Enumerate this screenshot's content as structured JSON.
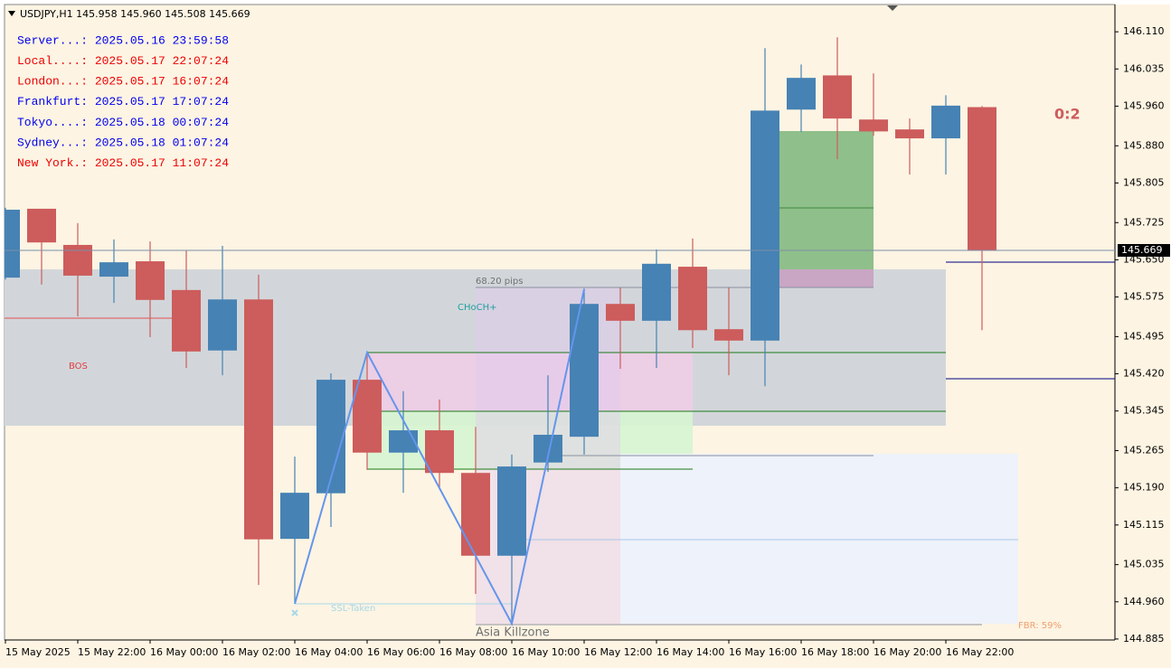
{
  "chart_data": {
    "type": "candlestick",
    "header": "USDJPY,H1  145.958 145.960 145.508 145.669",
    "clocks": [
      {
        "text": "Server...: 2025.05.16 23:59:58",
        "color": "#0000ee"
      },
      {
        "text": "Local....: 2025.05.17 22:07:24",
        "color": "#ee0000"
      },
      {
        "text": "London...: 2025.05.17 16:07:24",
        "color": "#ee0000"
      },
      {
        "text": "Frankfurt: 2025.05.17 17:07:24",
        "color": "#0000ee"
      },
      {
        "text": "Tokyo....: 2025.05.18 00:07:24",
        "color": "#0000ee"
      },
      {
        "text": "Sydney...: 2025.05.18 01:07:24",
        "color": "#0000ee"
      },
      {
        "text": "New York.: 2025.05.17 11:07:24",
        "color": "#ee0000"
      }
    ],
    "annotations": {
      "bos": "BOS",
      "choch": "CHoCH+",
      "pips": "68.20 pips",
      "ssl": "SSL-Taken",
      "killzone": "Asia Killzone",
      "fbr": "FBR: 59%",
      "score": "0:2"
    },
    "categories": [
      "15 May 2025",
      null,
      "15 May 22:00",
      null,
      "16 May 00:00",
      null,
      "16 May 02:00",
      null,
      "16 May 04:00",
      null,
      "16 May 06:00",
      null,
      "16 May 08:00",
      null,
      "16 May 10:00",
      null,
      "16 May 12:00",
      null,
      "16 May 14:00",
      null,
      "16 May 16:00",
      null,
      "16 May 18:00",
      null,
      "16 May 20:00",
      null,
      "16 May 22:00",
      null
    ],
    "open": [
      145.614,
      145.753,
      145.68,
      145.616,
      145.647,
      145.589,
      145.467,
      145.57,
      145.087,
      145.179,
      145.408,
      145.261,
      145.306,
      145.22,
      145.053,
      145.241,
      145.293,
      145.561,
      145.527,
      145.636,
      145.51,
      145.487,
      145.953,
      146.022,
      145.933,
      145.913,
      145.895,
      145.958
    ],
    "high": [
      145.755,
      145.753,
      145.724,
      145.691,
      145.687,
      145.669,
      145.678,
      145.62,
      145.253,
      145.421,
      145.463,
      145.385,
      145.368,
      145.313,
      145.257,
      145.417,
      145.592,
      145.594,
      145.671,
      145.693,
      145.594,
      146.077,
      146.044,
      146.099,
      146.026,
      145.935,
      145.982,
      145.96
    ],
    "low": [
      145.61,
      145.6,
      145.536,
      145.563,
      145.494,
      145.432,
      145.417,
      144.994,
      144.956,
      145.111,
      145.226,
      145.18,
      145.19,
      144.976,
      144.916,
      145.222,
      145.257,
      145.43,
      145.432,
      145.472,
      145.417,
      145.395,
      145.908,
      145.853,
      145.9,
      145.822,
      145.822,
      145.508
    ],
    "close": [
      145.751,
      145.685,
      145.618,
      145.645,
      145.569,
      145.465,
      145.57,
      145.086,
      145.18,
      145.408,
      145.261,
      145.306,
      145.22,
      145.053,
      145.233,
      145.297,
      145.561,
      145.527,
      145.642,
      145.508,
      145.487,
      145.951,
      146.017,
      145.935,
      145.909,
      145.895,
      145.961,
      145.669
    ],
    "bull_color": "#4682b4",
    "bear_color": "#cd5c5c",
    "ylim": [
      144.883,
      146.165
    ],
    "yticks": [
      {
        "value": 146.11,
        "label": "146.110"
      },
      146.035,
      {
        "value": 145.96,
        "label": "145.960"
      },
      {
        "value": 145.88,
        "label": "145.880"
      },
      145.805,
      145.725,
      {
        "value": 145.65,
        "label": "145.650"
      },
      145.575,
      145.495,
      {
        "value": 145.42,
        "label": "145.420"
      },
      145.345,
      145.265,
      {
        "value": 145.19,
        "label": "145.190"
      },
      145.115,
      145.035,
      {
        "value": 144.96,
        "label": "144.960"
      },
      144.885
    ]
  }
}
